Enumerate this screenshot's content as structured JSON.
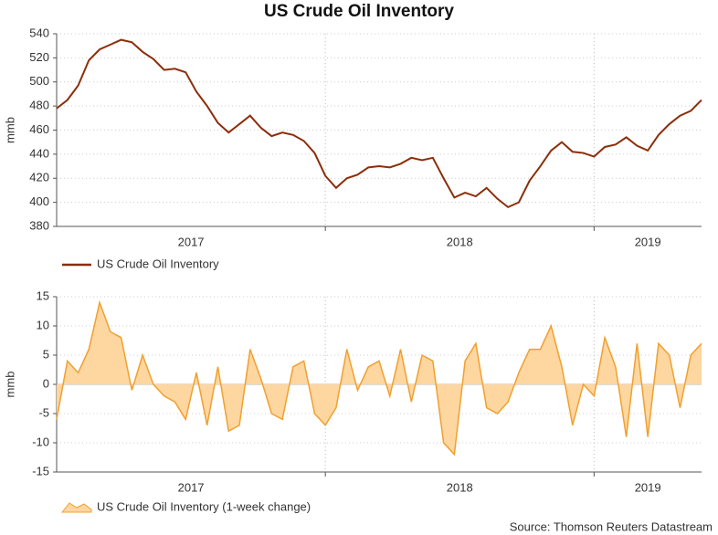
{
  "chart_data": [
    {
      "type": "line",
      "title": "US Crude Oil Inventory",
      "ylabel": "mmb",
      "x": [
        2017,
        2017.04,
        2017.08,
        2017.12,
        2017.16,
        2017.2,
        2017.24,
        2017.28,
        2017.32,
        2017.36,
        2017.4,
        2017.44,
        2017.48,
        2017.52,
        2017.56,
        2017.6,
        2017.64,
        2017.68,
        2017.72,
        2017.76,
        2017.8,
        2017.84,
        2017.88,
        2017.92,
        2017.96,
        2018,
        2018.04,
        2018.08,
        2018.12,
        2018.16,
        2018.2,
        2018.24,
        2018.28,
        2018.32,
        2018.36,
        2018.4,
        2018.44,
        2018.48,
        2018.52,
        2018.56,
        2018.6,
        2018.64,
        2018.68,
        2018.72,
        2018.76,
        2018.8,
        2018.84,
        2018.88,
        2018.92,
        2018.96,
        2019,
        2019.04,
        2019.08,
        2019.12,
        2019.16,
        2019.2,
        2019.24,
        2019.28,
        2019.32,
        2019.36,
        2019.4
      ],
      "xlim": [
        2017,
        2019.4
      ],
      "xticks": [
        {
          "value": 2017.5,
          "label": "2017"
        },
        {
          "value": 2018.5,
          "label": "2018"
        },
        {
          "value": 2019.2,
          "label": "2019"
        }
      ],
      "xgrid": [
        2018,
        2019
      ],
      "ylim": [
        380,
        540
      ],
      "yticks": [
        380,
        400,
        420,
        440,
        460,
        480,
        500,
        520,
        540
      ],
      "grid": true,
      "series": [
        {
          "name": "US Crude Oil Inventory",
          "color": "#8b2e0a",
          "values": [
            478,
            485,
            497,
            518,
            527,
            531,
            535,
            533,
            525,
            519,
            510,
            511,
            508,
            492,
            480,
            466,
            458,
            465,
            472,
            462,
            455,
            458,
            456,
            451,
            441,
            422,
            412,
            420,
            423,
            429,
            430,
            429,
            432,
            437,
            435,
            437,
            420,
            404,
            408,
            405,
            412,
            403,
            396,
            400,
            418,
            430,
            443,
            450,
            442,
            441,
            438,
            446,
            448,
            454,
            447,
            443,
            456,
            465,
            472,
            476,
            485
          ]
        }
      ]
    },
    {
      "type": "area",
      "ylabel": "mmb",
      "x": [
        2017,
        2017.04,
        2017.08,
        2017.12,
        2017.16,
        2017.2,
        2017.24,
        2017.28,
        2017.32,
        2017.36,
        2017.4,
        2017.44,
        2017.48,
        2017.52,
        2017.56,
        2017.6,
        2017.64,
        2017.68,
        2017.72,
        2017.76,
        2017.8,
        2017.84,
        2017.88,
        2017.92,
        2017.96,
        2018,
        2018.04,
        2018.08,
        2018.12,
        2018.16,
        2018.2,
        2018.24,
        2018.28,
        2018.32,
        2018.36,
        2018.4,
        2018.44,
        2018.48,
        2018.52,
        2018.56,
        2018.6,
        2018.64,
        2018.68,
        2018.72,
        2018.76,
        2018.8,
        2018.84,
        2018.88,
        2018.92,
        2018.96,
        2019,
        2019.04,
        2019.08,
        2019.12,
        2019.16,
        2019.2,
        2019.24,
        2019.28,
        2019.32,
        2019.36,
        2019.4
      ],
      "xlim": [
        2017,
        2019.4
      ],
      "xticks": [
        {
          "value": 2017.5,
          "label": "2017"
        },
        {
          "value": 2018.5,
          "label": "2018"
        },
        {
          "value": 2019.2,
          "label": "2019"
        }
      ],
      "xgrid": [
        2018,
        2019
      ],
      "ylim": [
        -15,
        15
      ],
      "yticks": [
        -15,
        -10,
        -5,
        0,
        5,
        10,
        15
      ],
      "grid": true,
      "series": [
        {
          "name": "US Crude Oil Inventory (1-week change)",
          "color": "#f0a030",
          "fill": "#fdd6a0",
          "values": [
            -6,
            4,
            2,
            6,
            14,
            9,
            8,
            -1,
            5,
            0,
            -2,
            -3,
            -6,
            2,
            -7,
            3,
            -8,
            -7,
            6,
            1,
            -5,
            -6,
            3,
            4,
            -5,
            -7,
            -4,
            6,
            -1,
            3,
            4,
            -2,
            6,
            -3,
            5,
            4,
            -10,
            -12,
            4,
            7,
            -4,
            -5,
            -3,
            2,
            6,
            6,
            10,
            3,
            -7,
            0,
            -2,
            8,
            3,
            -9,
            7,
            -9,
            7,
            5,
            -4,
            5,
            7
          ]
        }
      ]
    }
  ],
  "source": "Source: Thomson Reuters Datastream"
}
